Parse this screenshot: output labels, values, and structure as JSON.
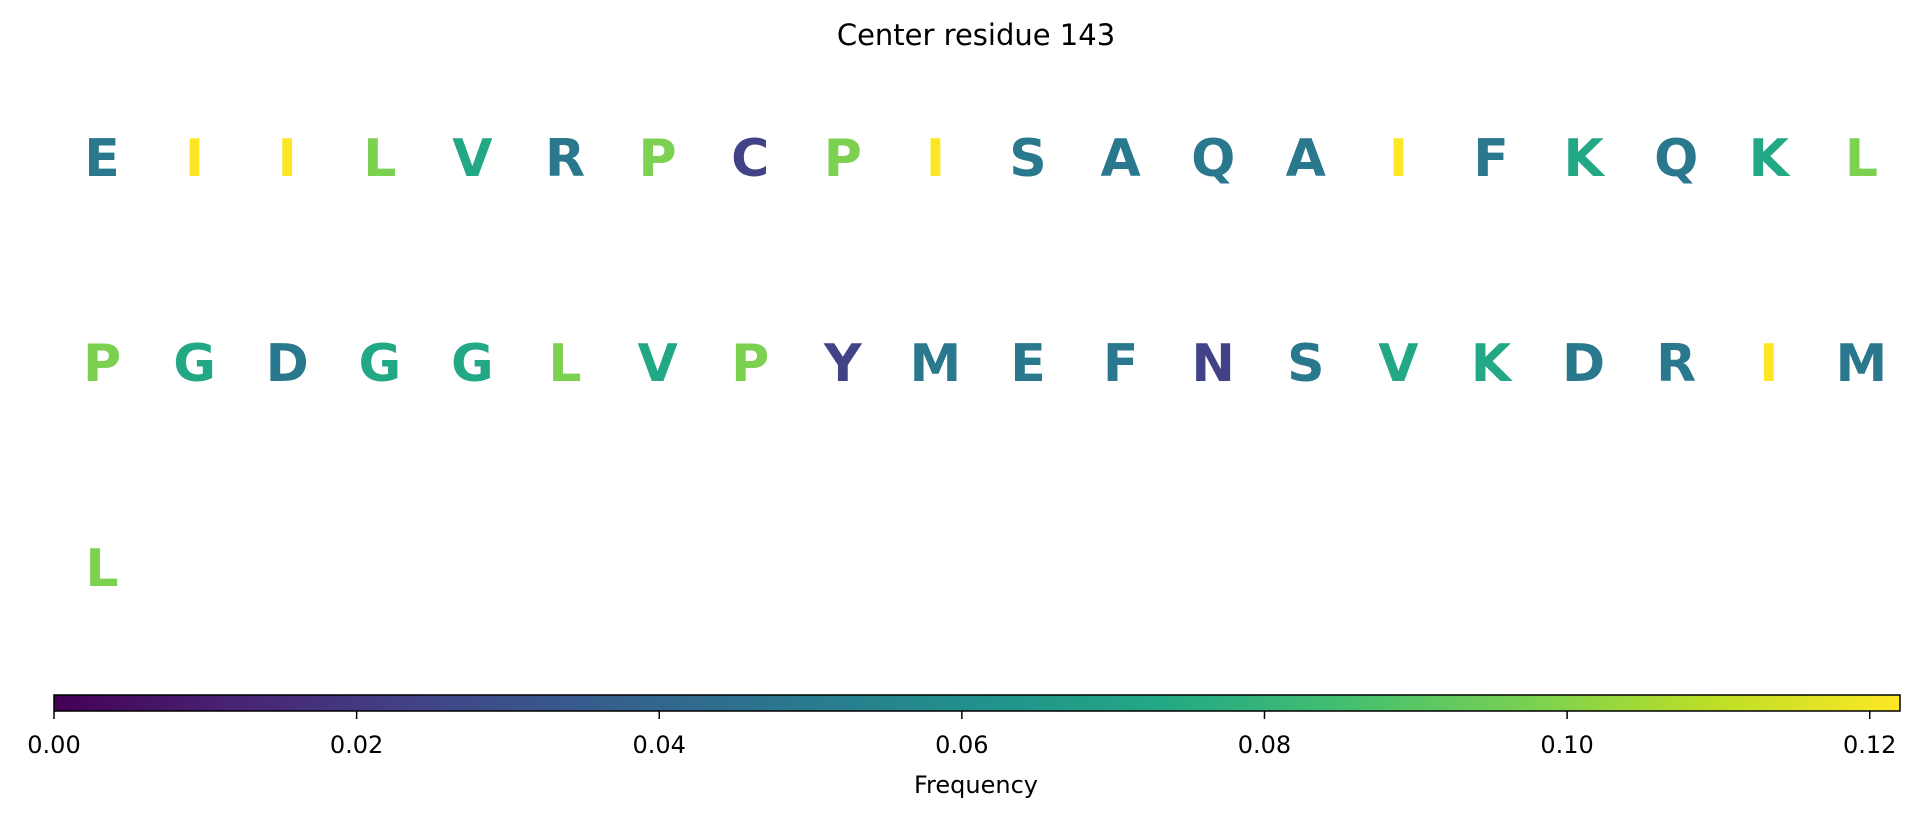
{
  "chart_data": {
    "type": "logo",
    "title": "Center residue 143",
    "letters": [
      "E",
      "I",
      "I",
      "L",
      "V",
      "R",
      "P",
      "C",
      "P",
      "I",
      "S",
      "A",
      "Q",
      "A",
      "I",
      "F",
      "K",
      "Q",
      "K",
      "L",
      "P",
      "G",
      "D",
      "G",
      "G",
      "L",
      "V",
      "P",
      "Y",
      "M",
      "E",
      "F",
      "N",
      "S",
      "V",
      "K",
      "D",
      "R",
      "I",
      "M",
      "L"
    ],
    "values": [
      0.049,
      0.122,
      0.122,
      0.098,
      0.073,
      0.049,
      0.098,
      0.024,
      0.098,
      0.122,
      0.049,
      0.049,
      0.049,
      0.049,
      0.122,
      0.049,
      0.073,
      0.049,
      0.073,
      0.098,
      0.098,
      0.073,
      0.049,
      0.073,
      0.073,
      0.098,
      0.073,
      0.098,
      0.024,
      0.049,
      0.049,
      0.049,
      0.024,
      0.049,
      0.073,
      0.073,
      0.049,
      0.049,
      0.122,
      0.049,
      0.098
    ],
    "per_row": 20,
    "colormap": "viridis",
    "colorbar_label": "Frequency",
    "clim": [
      0,
      0.122
    ],
    "cticks": [
      {
        "value": 0,
        "label": "0.00"
      },
      {
        "value": 0.02,
        "label": "0.02"
      },
      {
        "value": 0.04,
        "label": "0.04"
      },
      {
        "value": 0.06,
        "label": "0.06"
      },
      {
        "value": 0.08,
        "label": "0.08"
      },
      {
        "value": 0.1,
        "label": "0.10"
      },
      {
        "value": 0.12,
        "label": "0.12"
      }
    ]
  }
}
